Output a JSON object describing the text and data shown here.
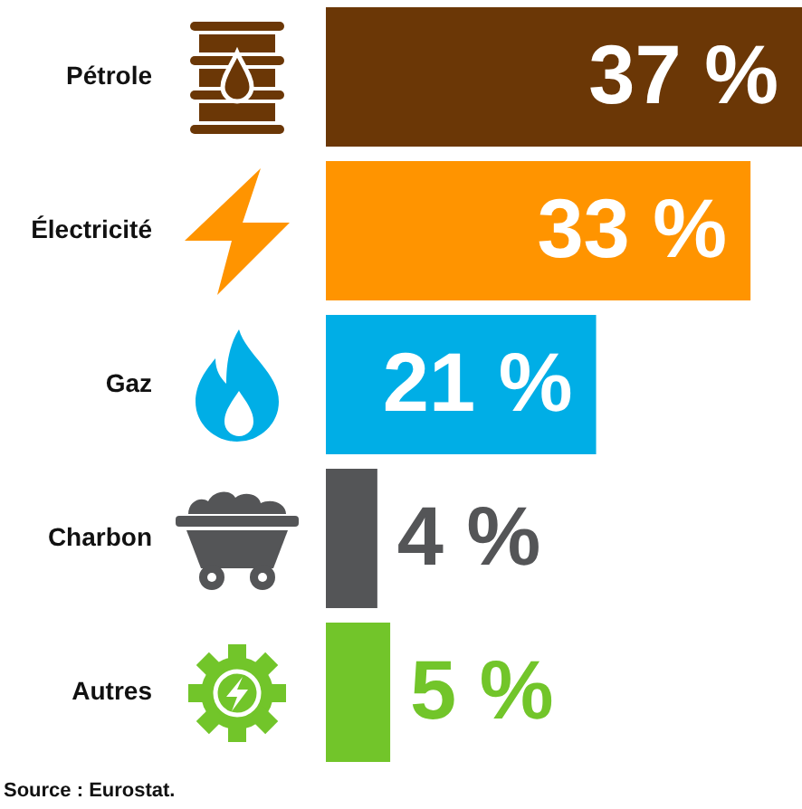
{
  "chart_data": {
    "type": "bar",
    "orientation": "horizontal",
    "categories": [
      "Pétrole",
      "Électricité",
      "Gaz",
      "Charbon",
      "Autres"
    ],
    "values": [
      37,
      33,
      21,
      4,
      5
    ],
    "colors": [
      "#6b3706",
      "#ff9400",
      "#00aee6",
      "#545557",
      "#72c52a"
    ],
    "value_labels": [
      "37 %",
      "33 %",
      "21 %",
      "4 %",
      "5 %"
    ],
    "annotations": [
      "Source : Eurostat."
    ]
  }
}
